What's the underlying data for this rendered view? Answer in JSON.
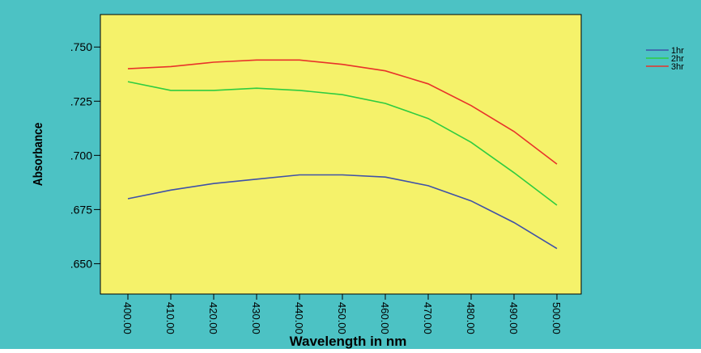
{
  "chart_data": {
    "type": "line",
    "title": "",
    "xlabel": "Wavelength in nm",
    "ylabel": "Absorbance",
    "x": [
      400,
      410,
      420,
      430,
      440,
      450,
      460,
      470,
      480,
      490,
      500
    ],
    "x_tick_labels": [
      "400.00",
      "410.00",
      "420.00",
      "430.00",
      "440.00",
      "450.00",
      "460.00",
      "470.00",
      "480.00",
      "490.00",
      "500.00"
    ],
    "ylim": [
      0.636,
      0.765
    ],
    "y_ticks": [
      0.65,
      0.675,
      0.7,
      0.725,
      0.75
    ],
    "y_tick_labels": [
      ".650",
      ".675",
      ".700",
      ".725",
      ".750"
    ],
    "grid": false,
    "legend_position": "top-right",
    "series": [
      {
        "name": "1hr",
        "color": "#3f51a8",
        "values": [
          0.68,
          0.684,
          0.687,
          0.689,
          0.691,
          0.691,
          0.69,
          0.686,
          0.679,
          0.669,
          0.657
        ]
      },
      {
        "name": "2hr",
        "color": "#2ecc40",
        "values": [
          0.734,
          0.73,
          0.73,
          0.731,
          0.73,
          0.728,
          0.724,
          0.717,
          0.706,
          0.692,
          0.677
        ]
      },
      {
        "name": "3hr",
        "color": "#e8322a",
        "values": [
          0.74,
          0.741,
          0.743,
          0.744,
          0.744,
          0.742,
          0.739,
          0.733,
          0.723,
          0.711,
          0.696
        ]
      }
    ],
    "colors": {
      "background": "#4cc2c4",
      "plot_area": "#f5f26a",
      "axis": "#000000"
    }
  }
}
